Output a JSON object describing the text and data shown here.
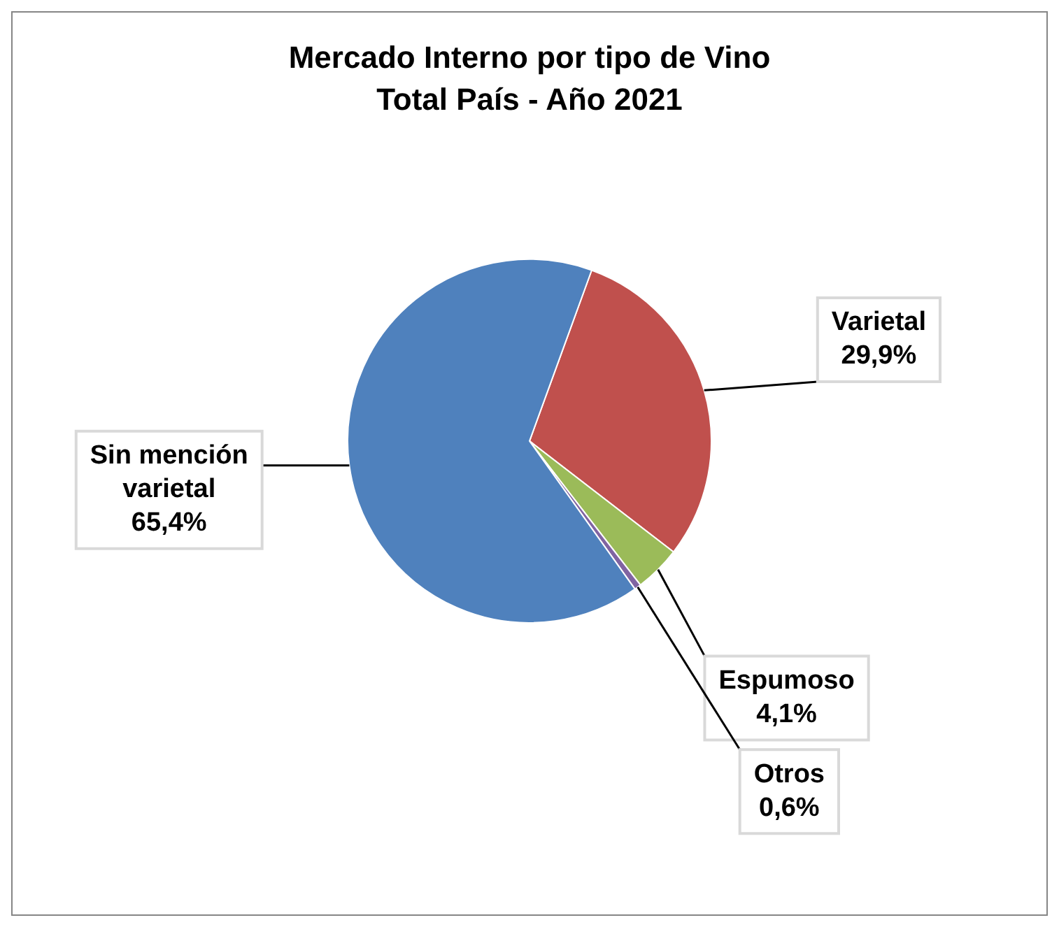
{
  "chart_data": {
    "type": "pie",
    "title": "Mercado Interno por tipo de Vino",
    "subtitle": "Total País - Año 2021",
    "categories": [
      "Varietal",
      "Espumoso",
      "Otros",
      "Sin mención varietal"
    ],
    "values": [
      29.9,
      4.1,
      0.6,
      65.4
    ],
    "colors": [
      "#c0504d",
      "#9bbb59",
      "#8064a2",
      "#4f81bd"
    ],
    "value_labels": [
      "29,9%",
      "4,1%",
      "0,6%",
      "65,4%"
    ]
  }
}
